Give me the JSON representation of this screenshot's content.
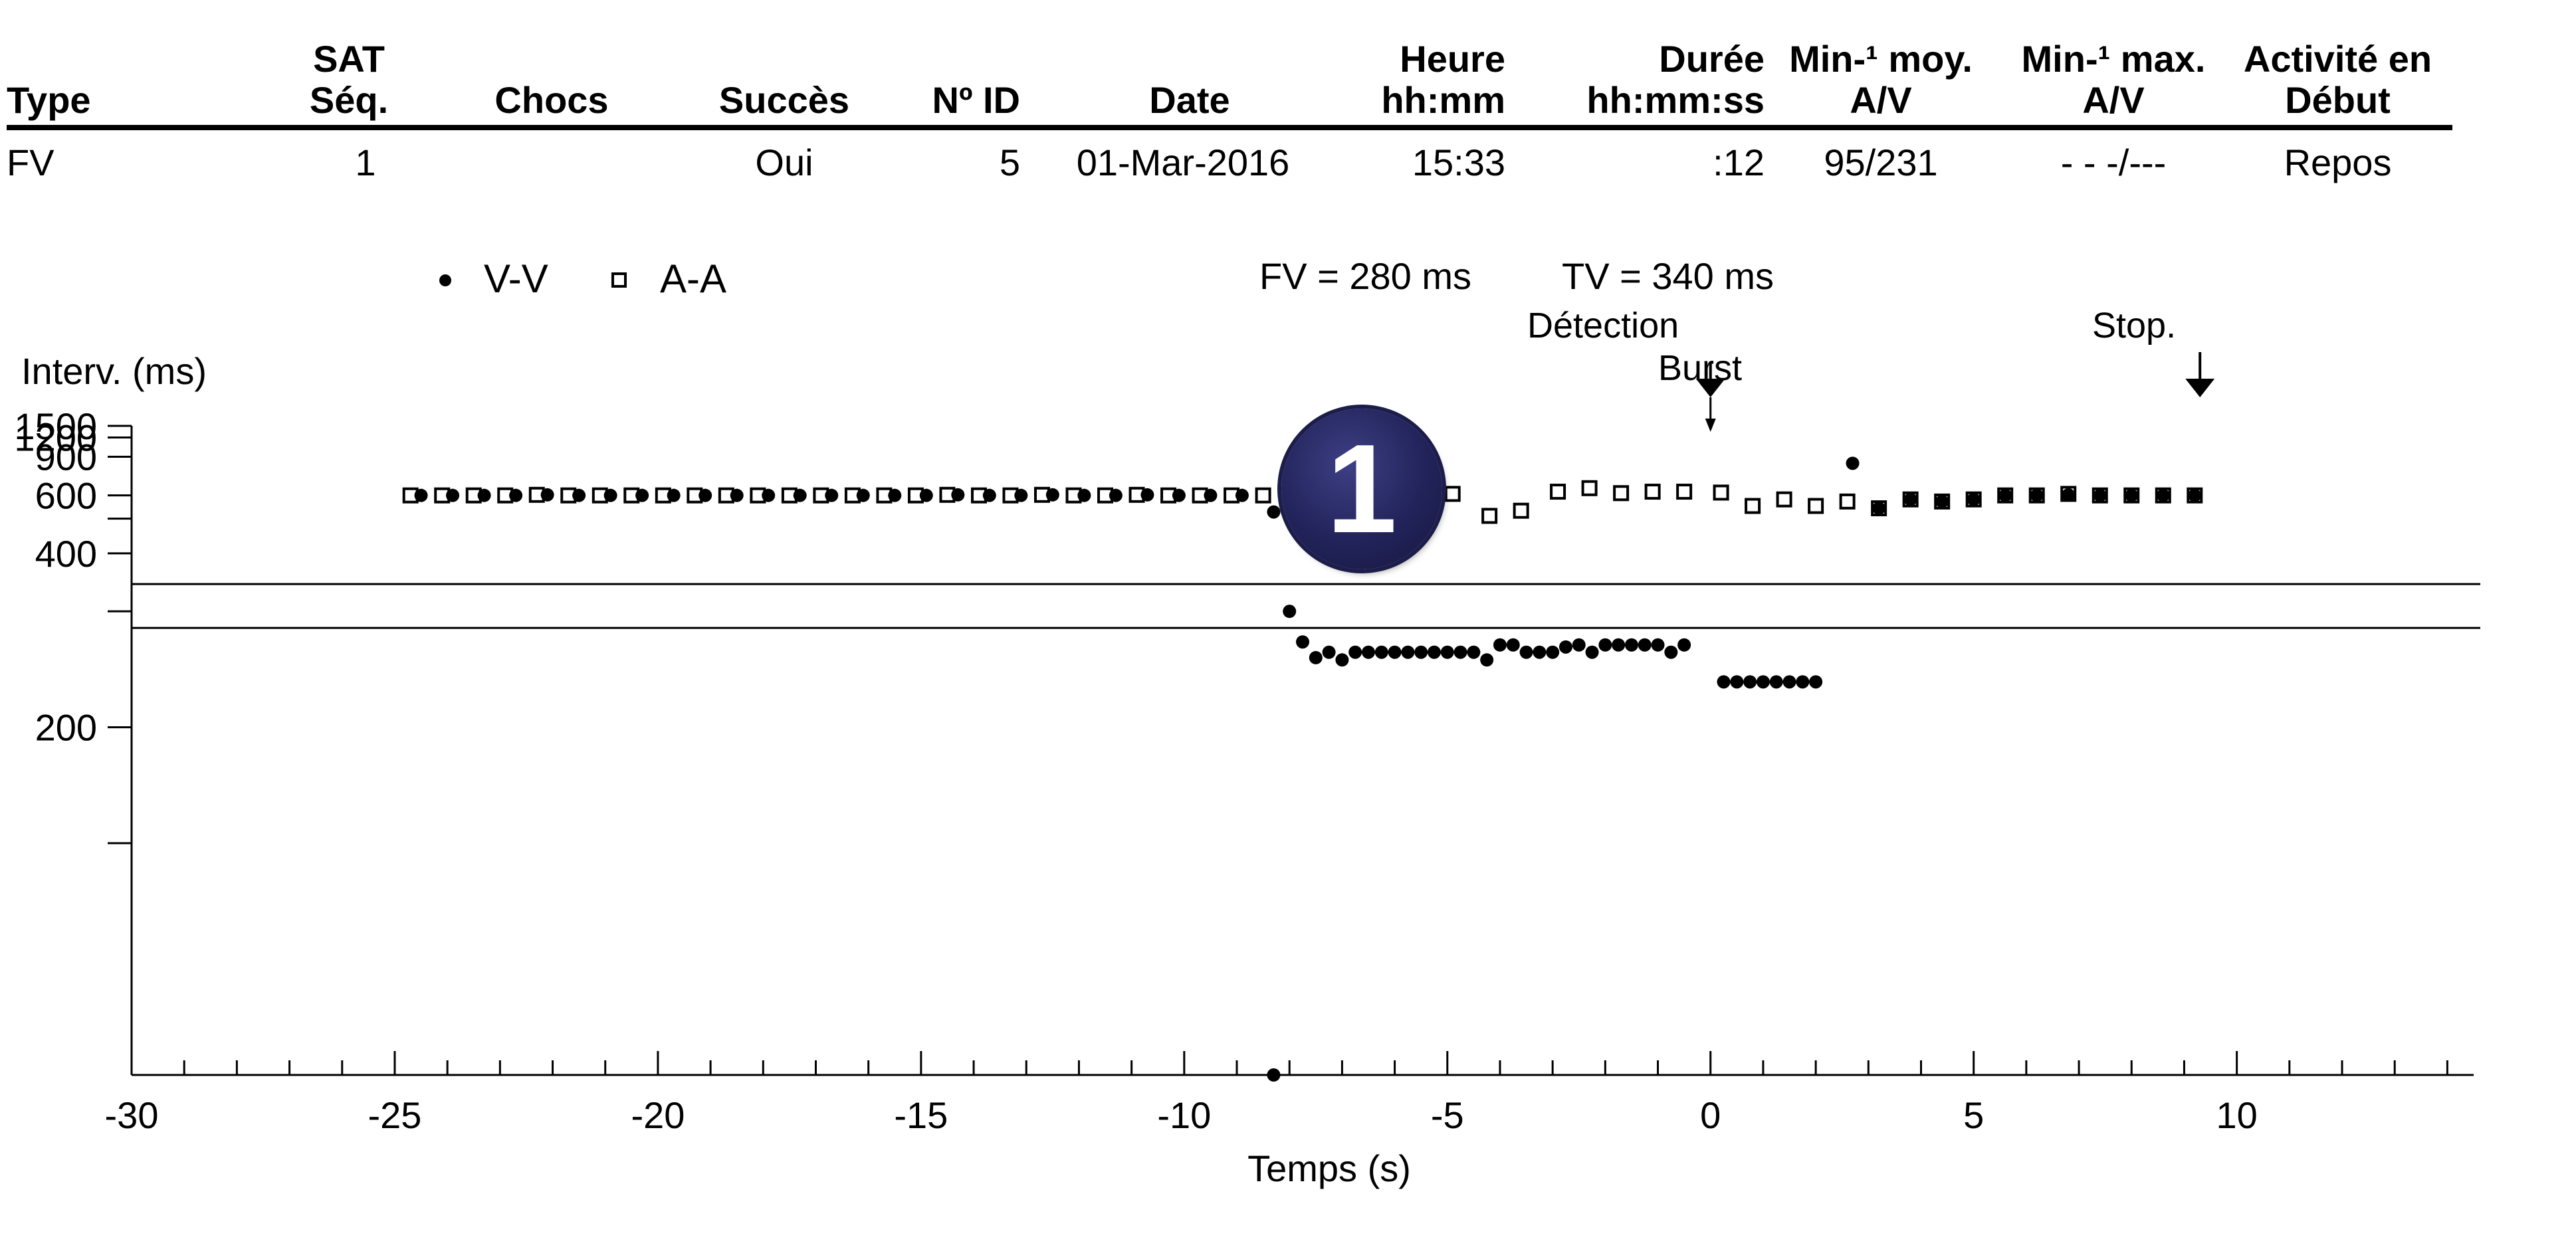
{
  "table": {
    "headers": [
      {
        "line1": "",
        "line2": "Type"
      },
      {
        "line1": "SAT",
        "line2": "Séq."
      },
      {
        "line1": "",
        "line2": "Chocs"
      },
      {
        "line1": "",
        "line2": "Succès"
      },
      {
        "line1": "",
        "line2": "Nº ID"
      },
      {
        "line1": "",
        "line2": "Date"
      },
      {
        "line1": "Heure",
        "line2": "hh:mm"
      },
      {
        "line1": "Durée",
        "line2": "hh:mm:ss"
      },
      {
        "line1": "Min-¹ moy.",
        "line2": "A/V"
      },
      {
        "line1": "Min-¹ max.",
        "line2": "A/V"
      },
      {
        "line1": "Activité en",
        "line2": "Début"
      }
    ],
    "row": [
      "FV",
      "1",
      "",
      "Oui",
      "5",
      "01-Mar-2016",
      "15:33",
      ":12",
      "95/231",
      "- - -/---",
      "Repos"
    ]
  },
  "badge": "1",
  "chart_data": {
    "type": "scatter",
    "ylabel": "Interv. (ms)",
    "xlabel": "Temps (s)",
    "xlim": [
      -30,
      14.5
    ],
    "ylim": [
      1500,
      100
    ],
    "y_scale": "reciprocal",
    "x_ticks": [
      -30,
      -25,
      -20,
      -15,
      -10,
      -5,
      0,
      5,
      10
    ],
    "x_tick_labels": [
      "-30",
      "-25",
      "-20",
      "-15",
      "-10",
      "-5",
      "0",
      "5",
      "10"
    ],
    "y_ticks": [
      1500,
      1200,
      900,
      600,
      500,
      400,
      300,
      200,
      150
    ],
    "y_tick_labels": [
      "1500",
      "1200",
      "900",
      "600",
      "",
      "400",
      "",
      "200",
      ""
    ],
    "legend": [
      {
        "name": "V-V",
        "marker": "filled-dot"
      },
      {
        "name": "A-A",
        "marker": "open-square"
      }
    ],
    "zone_labels": [
      "FV = 280 ms",
      "TV = 340 ms"
    ],
    "threshold_lines_ms": [
      340,
      280
    ],
    "markers": [
      {
        "label": "Détection",
        "x": 0
      },
      {
        "label": "Burst",
        "x": 0
      },
      {
        "label": "Stop.",
        "x": 9.3
      }
    ],
    "series": [
      {
        "name": "V-V",
        "color": "#000000",
        "points": [
          [
            -24.5,
            600
          ],
          [
            -23.9,
            600
          ],
          [
            -23.3,
            600
          ],
          [
            -22.7,
            600
          ],
          [
            -22.1,
            603
          ],
          [
            -21.5,
            600
          ],
          [
            -20.9,
            600
          ],
          [
            -20.3,
            600
          ],
          [
            -19.7,
            600
          ],
          [
            -19.1,
            600
          ],
          [
            -18.5,
            600
          ],
          [
            -17.9,
            600
          ],
          [
            -17.3,
            600
          ],
          [
            -16.7,
            600
          ],
          [
            -16.1,
            600
          ],
          [
            -15.5,
            600
          ],
          [
            -14.9,
            600
          ],
          [
            -14.3,
            603
          ],
          [
            -13.7,
            600
          ],
          [
            -13.1,
            600
          ],
          [
            -12.5,
            603
          ],
          [
            -11.9,
            600
          ],
          [
            -11.3,
            600
          ],
          [
            -10.7,
            603
          ],
          [
            -10.1,
            600
          ],
          [
            -9.5,
            600
          ],
          [
            -8.9,
            600
          ],
          [
            -8.3,
            525
          ],
          [
            -8.3,
            100
          ],
          [
            -8.0,
            300
          ],
          [
            -7.75,
            265
          ],
          [
            -7.5,
            250
          ],
          [
            -7.25,
            255
          ],
          [
            -7.0,
            248
          ],
          [
            -6.75,
            255
          ],
          [
            -6.5,
            255
          ],
          [
            -6.25,
            255
          ],
          [
            -6.0,
            255
          ],
          [
            -5.75,
            255
          ],
          [
            -5.5,
            255
          ],
          [
            -5.25,
            255
          ],
          [
            -5.0,
            255
          ],
          [
            -4.75,
            255
          ],
          [
            -4.5,
            255
          ],
          [
            -4.25,
            248
          ],
          [
            -4.0,
            262
          ],
          [
            -3.75,
            262
          ],
          [
            -3.5,
            255
          ],
          [
            -3.25,
            255
          ],
          [
            -3.0,
            255
          ],
          [
            -2.75,
            260
          ],
          [
            -2.5,
            262
          ],
          [
            -2.25,
            255
          ],
          [
            -2.0,
            262
          ],
          [
            -1.75,
            262
          ],
          [
            -1.5,
            262
          ],
          [
            -1.25,
            262
          ],
          [
            -1.0,
            262
          ],
          [
            -0.75,
            255
          ],
          [
            -0.5,
            262
          ],
          [
            0.25,
            230
          ],
          [
            0.5,
            230
          ],
          [
            0.75,
            230
          ],
          [
            1.0,
            230
          ],
          [
            1.25,
            230
          ],
          [
            1.5,
            230
          ],
          [
            1.75,
            230
          ],
          [
            2.0,
            230
          ],
          [
            2.7,
            830
          ],
          [
            3.2,
            540
          ],
          [
            3.8,
            580
          ],
          [
            4.4,
            570
          ],
          [
            5.0,
            580
          ],
          [
            5.6,
            600
          ],
          [
            6.2,
            600
          ],
          [
            6.8,
            603
          ],
          [
            7.4,
            600
          ],
          [
            8.0,
            600
          ],
          [
            8.6,
            600
          ],
          [
            9.2,
            600
          ]
        ]
      },
      {
        "name": "A-A",
        "color": "#000000",
        "points": [
          [
            -24.7,
            600
          ],
          [
            -24.1,
            600
          ],
          [
            -23.5,
            600
          ],
          [
            -22.9,
            600
          ],
          [
            -22.3,
            603
          ],
          [
            -21.7,
            600
          ],
          [
            -21.1,
            600
          ],
          [
            -20.5,
            600
          ],
          [
            -19.9,
            600
          ],
          [
            -19.3,
            600
          ],
          [
            -18.7,
            600
          ],
          [
            -18.1,
            600
          ],
          [
            -17.5,
            600
          ],
          [
            -16.9,
            600
          ],
          [
            -16.3,
            600
          ],
          [
            -15.7,
            600
          ],
          [
            -15.1,
            600
          ],
          [
            -14.5,
            603
          ],
          [
            -13.9,
            600
          ],
          [
            -13.3,
            600
          ],
          [
            -12.7,
            603
          ],
          [
            -12.1,
            600
          ],
          [
            -11.5,
            600
          ],
          [
            -10.9,
            603
          ],
          [
            -10.3,
            600
          ],
          [
            -9.7,
            600
          ],
          [
            -9.1,
            600
          ],
          [
            -8.5,
            600
          ],
          [
            -7.9,
            600
          ],
          [
            -7.3,
            603
          ],
          [
            -6.7,
            608
          ],
          [
            -6.1,
            605
          ],
          [
            -5.5,
            605
          ],
          [
            -4.9,
            608
          ],
          [
            -4.2,
            510
          ],
          [
            -3.6,
            530
          ],
          [
            -2.9,
            620
          ],
          [
            -2.3,
            640
          ],
          [
            -1.7,
            612
          ],
          [
            -1.1,
            620
          ],
          [
            -0.5,
            620
          ],
          [
            0.2,
            615
          ],
          [
            0.8,
            550
          ],
          [
            1.4,
            580
          ],
          [
            2.0,
            550
          ],
          [
            2.6,
            570
          ],
          [
            3.2,
            540
          ],
          [
            3.8,
            580
          ],
          [
            4.4,
            570
          ],
          [
            5.0,
            580
          ],
          [
            5.6,
            600
          ],
          [
            6.2,
            600
          ],
          [
            6.8,
            608
          ],
          [
            7.4,
            600
          ],
          [
            8.0,
            600
          ],
          [
            8.6,
            600
          ],
          [
            9.2,
            600
          ]
        ]
      }
    ]
  }
}
